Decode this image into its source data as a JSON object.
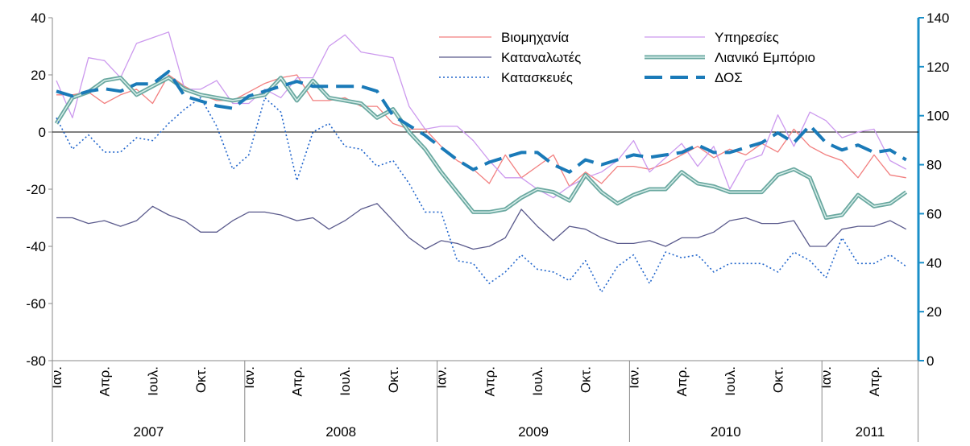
{
  "chart_data": {
    "type": "line",
    "categories": [
      "Ιαν.",
      null,
      null,
      "Απρ.",
      null,
      null,
      "Ιουλ.",
      null,
      null,
      "Οκτ.",
      null,
      null,
      "Ιαν.",
      null,
      null,
      "Απρ.",
      null,
      null,
      "Ιουλ.",
      null,
      null,
      "Οκτ.",
      null,
      null,
      "Ιαν.",
      null,
      null,
      "Απρ.",
      null,
      null,
      "Ιουλ.",
      null,
      null,
      "Οκτ.",
      null,
      null,
      "Ιαν.",
      null,
      null,
      "Απρ.",
      null,
      null,
      "Ιουλ.",
      null,
      null,
      "Οκτ.",
      null,
      null,
      "Ιαν.",
      null,
      null,
      "Απρ.",
      null,
      null
    ],
    "years": [
      {
        "label": "2007",
        "months": 12
      },
      {
        "label": "2008",
        "months": 12
      },
      {
        "label": "2009",
        "months": 12
      },
      {
        "label": "2010",
        "months": 12
      },
      {
        "label": "2011",
        "months": 6
      }
    ],
    "ylim": [
      -80,
      40
    ],
    "yticks": [
      -80,
      -60,
      -40,
      -20,
      0,
      20,
      40
    ],
    "y2lim": [
      0,
      140
    ],
    "y2ticks": [
      0,
      20,
      40,
      60,
      80,
      100,
      120,
      140
    ],
    "series": [
      {
        "name": "Βιομηχανία",
        "color": "#f27f7f",
        "style": "solid",
        "values": [
          13,
          13,
          14,
          10,
          13,
          15,
          10,
          20,
          16,
          13,
          11,
          11,
          14,
          17,
          19,
          20,
          11,
          11,
          12,
          9,
          9,
          3,
          1,
          1,
          -5,
          -10,
          -13,
          -18,
          -8,
          -16,
          -12,
          -8,
          -19,
          -14,
          -18,
          -12,
          -12,
          -13,
          -11,
          -8,
          -5,
          -9,
          -6,
          -8,
          -4,
          -7,
          1,
          -5,
          -8,
          -10,
          -16,
          -8,
          -15,
          -16
        ]
      },
      {
        "name": "Υπηρεσίες",
        "color": "#cc99ee",
        "style": "solid",
        "values": [
          18,
          5,
          26,
          25,
          19,
          31,
          33,
          35,
          15,
          15,
          18,
          10,
          10,
          15,
          12,
          19,
          19,
          30,
          34,
          28,
          27,
          26,
          9,
          1,
          2,
          2,
          -3,
          -10,
          -16,
          -16,
          -20,
          -23,
          -19,
          -16,
          -14,
          -10,
          -3,
          -14,
          -9,
          -4,
          -12,
          -5,
          -20,
          -10,
          -8,
          6,
          -5,
          7,
          4,
          -2,
          0,
          1,
          -10,
          -13
        ]
      },
      {
        "name": "Καταναλωτές",
        "color": "#5a5a8c",
        "style": "solid",
        "values": [
          -30,
          -30,
          -32,
          -31,
          -33,
          -31,
          -26,
          -29,
          -31,
          -35,
          -35,
          -31,
          -28,
          -28,
          -29,
          -31,
          -30,
          -34,
          -31,
          -27,
          -25,
          -31,
          -37,
          -41,
          -38,
          -39,
          -41,
          -40,
          -37,
          -27,
          -33,
          -38,
          -33,
          -34,
          -37,
          -39,
          -39,
          -38,
          -40,
          -37,
          -37,
          -35,
          -31,
          -30,
          -32,
          -32,
          -31,
          -40,
          -40,
          -34,
          -33,
          -33,
          -31,
          -34
        ]
      },
      {
        "name": "Λιανικό Εμπόριο",
        "color": "#6aa8a0",
        "style": "double",
        "values": [
          3,
          12,
          14,
          18,
          19,
          13,
          16,
          19,
          15,
          13,
          12,
          11,
          12,
          13,
          19,
          11,
          18,
          12,
          11,
          10,
          5,
          8,
          0,
          -6,
          -14,
          -21,
          -28,
          -28,
          -27,
          -23,
          -20,
          -21,
          -24,
          -15,
          -21,
          -25,
          -22,
          -20,
          -20,
          -14,
          -18,
          -19,
          -21,
          -21,
          -21,
          -15,
          -13,
          -16,
          -30,
          -29,
          -22,
          -26,
          -25,
          -21
        ]
      },
      {
        "name": "Κατασκευές",
        "color": "#2266cc",
        "style": "dotted",
        "values": [
          5,
          -6,
          -1,
          -7,
          -7,
          -2,
          -3,
          3,
          8,
          12,
          2,
          -13,
          -8,
          12,
          7,
          -17,
          0,
          3,
          -5,
          -6,
          -12,
          -10,
          -18,
          -28,
          -28,
          -45,
          -46,
          -53,
          -49,
          -43,
          -48,
          -49,
          -52,
          -45,
          -56,
          -47,
          -43,
          -53,
          -42,
          -44,
          -43,
          -49,
          -46,
          -46,
          -46,
          -49,
          -42,
          -45,
          -51,
          -37,
          -46,
          -46,
          -43,
          -47
        ]
      },
      {
        "name": "ΔΟΣ",
        "color": "#1a7ab8",
        "style": "dashed",
        "axis": "y2",
        "values": [
          110,
          108,
          110,
          111,
          110,
          113,
          113,
          118,
          108,
          106,
          104,
          103,
          108,
          110,
          112,
          114,
          112,
          112,
          112,
          112,
          110,
          100,
          96,
          92,
          87,
          82,
          78,
          81,
          83,
          85,
          85,
          80,
          77,
          82,
          80,
          82,
          84,
          83,
          84,
          85,
          88,
          85,
          85,
          87,
          89,
          93,
          89,
          96,
          89,
          86,
          88,
          85,
          86,
          82
        ]
      }
    ]
  }
}
